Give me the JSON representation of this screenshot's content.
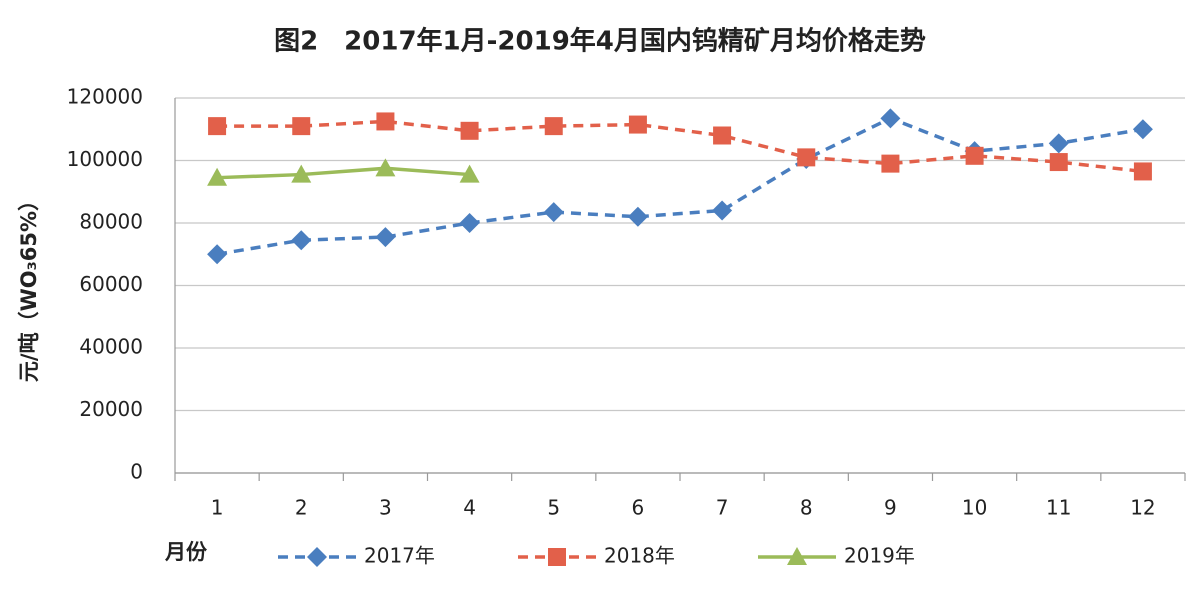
{
  "chart_data": {
    "type": "line",
    "title": "图2　2017年1月-2019年4月国内钨精矿月均价格走势",
    "y_label": "元/吨（WO₃65%）",
    "x_label": "月份",
    "categories": [
      "1",
      "2",
      "3",
      "4",
      "5",
      "6",
      "7",
      "8",
      "9",
      "10",
      "11",
      "12"
    ],
    "series": [
      {
        "name": "2017年",
        "color": "#4a7ebf",
        "line_style": "dashed",
        "marker": "diamond",
        "values": [
          70000,
          74500,
          75500,
          80000,
          83500,
          82000,
          84000,
          100500,
          113500,
          103000,
          105500,
          110000
        ]
      },
      {
        "name": "2018年",
        "color": "#e2604a",
        "line_style": "dashed",
        "marker": "square",
        "values": [
          111000,
          111000,
          112500,
          109500,
          111000,
          111500,
          108000,
          101000,
          99000,
          101500,
          99500,
          96500
        ]
      },
      {
        "name": "2019年",
        "color": "#9bbb59",
        "line_style": "solid",
        "marker": "triangle",
        "values": [
          94500,
          95500,
          97500,
          95500,
          null,
          null,
          null,
          null,
          null,
          null,
          null,
          null
        ]
      }
    ],
    "ylim": [
      0,
      120000
    ],
    "yticks": [
      0,
      20000,
      40000,
      60000,
      80000,
      100000,
      120000
    ],
    "grid": true,
    "legend": "bottom"
  }
}
